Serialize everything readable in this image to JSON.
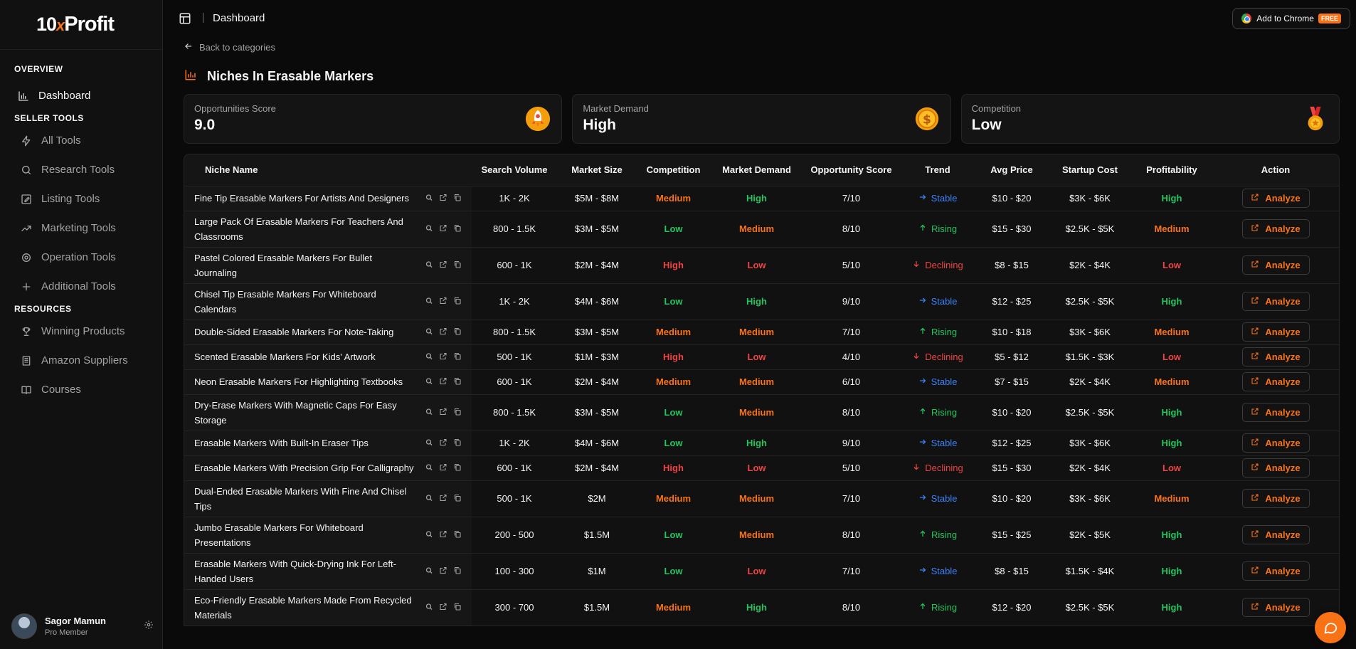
{
  "brand": {
    "prefix": "10",
    "x": "x",
    "suffix": "Profit"
  },
  "sidebar": {
    "sections": [
      {
        "label": "OVERVIEW",
        "items": [
          {
            "label": "Dashboard",
            "icon": "bar-chart-icon",
            "active": true
          }
        ]
      },
      {
        "label": "SELLER TOOLS",
        "items": [
          {
            "label": "All Tools",
            "icon": "lightning-icon"
          },
          {
            "label": "Research Tools",
            "icon": "search-icon"
          },
          {
            "label": "Listing Tools",
            "icon": "edit-icon"
          },
          {
            "label": "Marketing Tools",
            "icon": "trend-icon"
          },
          {
            "label": "Operation Tools",
            "icon": "gear-icon"
          },
          {
            "label": "Additional Tools",
            "icon": "plus-icon"
          }
        ]
      },
      {
        "label": "RESOURCES",
        "items": [
          {
            "label": "Winning Products",
            "icon": "trophy-icon"
          },
          {
            "label": "Amazon Suppliers",
            "icon": "building-icon"
          },
          {
            "label": "Courses",
            "icon": "book-icon"
          }
        ]
      }
    ],
    "user": {
      "name": "Sagor Mamun",
      "role": "Pro Member"
    }
  },
  "topbar": {
    "breadcrumb": "Dashboard",
    "chrome_label": "Add to Chrome",
    "free_badge": "FREE"
  },
  "main": {
    "back_label": "Back to categories",
    "title": "Niches In Erasable Markers",
    "cards": [
      {
        "label": "Opportunities Score",
        "value": "9.0",
        "icon": "rocket-icon"
      },
      {
        "label": "Market Demand",
        "value": "High",
        "icon": "coin-icon"
      },
      {
        "label": "Competition",
        "value": "Low",
        "icon": "medal-icon"
      }
    ],
    "columns": [
      "Niche Name",
      "Search Volume",
      "Market Size",
      "Competition",
      "Market Demand",
      "Opportunity Score",
      "Trend",
      "Avg Price",
      "Startup Cost",
      "Profitability",
      "Action"
    ],
    "action_label": "Analyze",
    "rows": [
      {
        "name": "Fine Tip Erasable Markers For Artists And Designers",
        "volume": "1K - 2K",
        "size": "$5M - $8M",
        "competition": "Medium",
        "demand": "High",
        "score": "7/10",
        "trend": "Stable",
        "price": "$10 - $20",
        "startup": "$3K - $6K",
        "profit": "High"
      },
      {
        "name": "Large Pack Of Erasable Markers For Teachers And Classrooms",
        "volume": "800 - 1.5K",
        "size": "$3M - $5M",
        "competition": "Low",
        "demand": "Medium",
        "score": "8/10",
        "trend": "Rising",
        "price": "$15 - $30",
        "startup": "$2.5K - $5K",
        "profit": "Medium"
      },
      {
        "name": "Pastel Colored Erasable Markers For Bullet Journaling",
        "volume": "600 - 1K",
        "size": "$2M - $4M",
        "competition": "High",
        "demand": "Low",
        "score": "5/10",
        "trend": "Declining",
        "price": "$8 - $15",
        "startup": "$2K - $4K",
        "profit": "Low"
      },
      {
        "name": "Chisel Tip Erasable Markers For Whiteboard Calendars",
        "volume": "1K - 2K",
        "size": "$4M - $6M",
        "competition": "Low",
        "demand": "High",
        "score": "9/10",
        "trend": "Stable",
        "price": "$12 - $25",
        "startup": "$2.5K - $5K",
        "profit": "High"
      },
      {
        "name": "Double-Sided Erasable Markers For Note-Taking",
        "volume": "800 - 1.5K",
        "size": "$3M - $5M",
        "competition": "Medium",
        "demand": "Medium",
        "score": "7/10",
        "trend": "Rising",
        "price": "$10 - $18",
        "startup": "$3K - $6K",
        "profit": "Medium"
      },
      {
        "name": "Scented Erasable Markers For Kids' Artwork",
        "volume": "500 - 1K",
        "size": "$1M - $3M",
        "competition": "High",
        "demand": "Low",
        "score": "4/10",
        "trend": "Declining",
        "price": "$5 - $12",
        "startup": "$1.5K - $3K",
        "profit": "Low"
      },
      {
        "name": "Neon Erasable Markers For Highlighting Textbooks",
        "volume": "600 - 1K",
        "size": "$2M - $4M",
        "competition": "Medium",
        "demand": "Medium",
        "score": "6/10",
        "trend": "Stable",
        "price": "$7 - $15",
        "startup": "$2K - $4K",
        "profit": "Medium"
      },
      {
        "name": "Dry-Erase Markers With Magnetic Caps For Easy Storage",
        "volume": "800 - 1.5K",
        "size": "$3M - $5M",
        "competition": "Low",
        "demand": "Medium",
        "score": "8/10",
        "trend": "Rising",
        "price": "$10 - $20",
        "startup": "$2.5K - $5K",
        "profit": "High"
      },
      {
        "name": "Erasable Markers With Built-In Eraser Tips",
        "volume": "1K - 2K",
        "size": "$4M - $6M",
        "competition": "Low",
        "demand": "High",
        "score": "9/10",
        "trend": "Stable",
        "price": "$12 - $25",
        "startup": "$3K - $6K",
        "profit": "High"
      },
      {
        "name": "Erasable Markers With Precision Grip For Calligraphy",
        "volume": "600 - 1K",
        "size": "$2M - $4M",
        "competition": "High",
        "demand": "Low",
        "score": "5/10",
        "trend": "Declining",
        "price": "$15 - $30",
        "startup": "$2K - $4K",
        "profit": "Low"
      },
      {
        "name": "Dual-Ended Erasable Markers With Fine And Chisel Tips",
        "volume": "500 - 1K",
        "size": "$2M",
        "competition": "Medium",
        "demand": "Medium",
        "score": "7/10",
        "trend": "Stable",
        "price": "$10 - $20",
        "startup": "$3K - $6K",
        "profit": "Medium"
      },
      {
        "name": "Jumbo Erasable Markers For Whiteboard Presentations",
        "volume": "200 - 500",
        "size": "$1.5M",
        "competition": "Low",
        "demand": "Medium",
        "score": "8/10",
        "trend": "Rising",
        "price": "$15 - $25",
        "startup": "$2K - $5K",
        "profit": "High"
      },
      {
        "name": "Erasable Markers With Quick-Drying Ink For Left-Handed Users",
        "volume": "100 - 300",
        "size": "$1M",
        "competition": "Low",
        "demand": "Low",
        "score": "7/10",
        "trend": "Stable",
        "price": "$8 - $15",
        "startup": "$1.5K - $4K",
        "profit": "High"
      },
      {
        "name": "Eco-Friendly Erasable Markers Made From Recycled Materials",
        "volume": "300 - 700",
        "size": "$1.5M",
        "competition": "Medium",
        "demand": "High",
        "score": "8/10",
        "trend": "Rising",
        "price": "$12 - $20",
        "startup": "$2.5K - $5K",
        "profit": "High"
      }
    ]
  },
  "colors": {
    "accent": "#f97316",
    "good": "#22c55e",
    "bad": "#ef4444",
    "stable": "#3b82f6"
  }
}
